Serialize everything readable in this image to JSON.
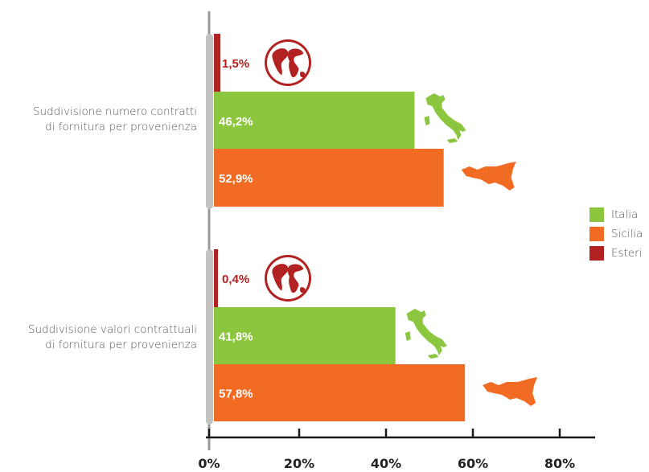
{
  "chart_data": {
    "type": "bar",
    "orientation": "horizontal",
    "categories": [
      "Suddivisione numero contratti\ndi fornitura per provenienza",
      "Suddivisione valori contrattuali\ndi fornitura per provenienza"
    ],
    "series": [
      {
        "name": "Esteri",
        "color": "#b22222",
        "icon": "globe-icon",
        "values": [
          1.5,
          0.4
        ],
        "labels": [
          "1,5%",
          "0,4%"
        ]
      },
      {
        "name": "Italia",
        "color": "#8cc63f",
        "icon": "italy-map-icon",
        "values": [
          46.2,
          41.8
        ],
        "labels": [
          "46,2%",
          "41,8%"
        ]
      },
      {
        "name": "Sicilia",
        "color": "#f26b23",
        "icon": "sicily-map-icon",
        "values": [
          52.9,
          57.8
        ],
        "labels": [
          "52,9%",
          "57,8%"
        ]
      }
    ],
    "xlim": [
      0,
      80
    ],
    "xticks": [
      "0%",
      "20%",
      "40%",
      "60%",
      "80%"
    ],
    "legend": {
      "position": "right",
      "items": [
        {
          "name": "Italia",
          "color": "#8cc63f"
        },
        {
          "name": "Sicilia",
          "color": "#f26b23"
        },
        {
          "name": "Esteri",
          "color": "#b22222"
        }
      ]
    },
    "grid": false
  }
}
